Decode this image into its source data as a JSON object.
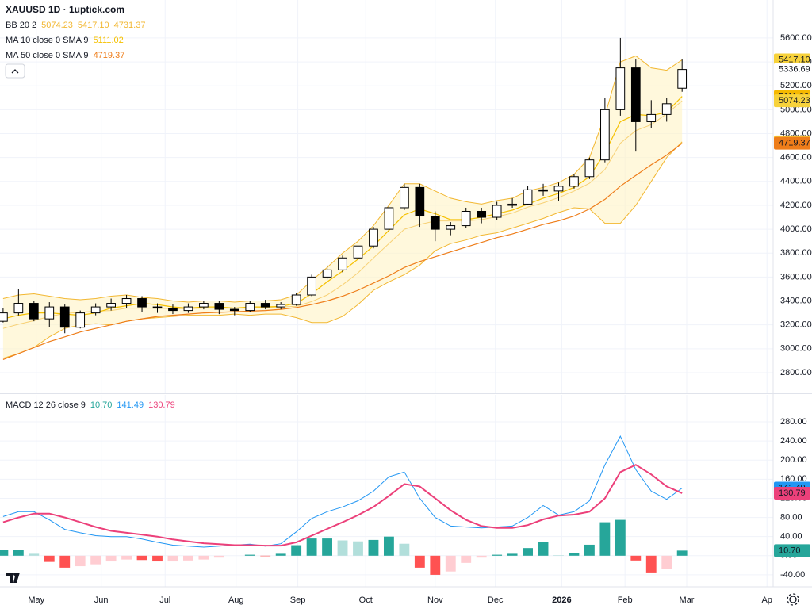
{
  "chart_data": [
    {
      "type": "candlestick",
      "title": "XAUUSD 1D · 1uptick.com",
      "ylim": [
        2634,
        5918
      ],
      "yticks": [
        {
          "value": 2800,
          "label": "2800.00"
        },
        {
          "value": 3000,
          "label": "3000.00"
        },
        {
          "value": 3200,
          "label": "3200.00"
        },
        {
          "value": 3400,
          "label": "3400.00"
        },
        {
          "value": 3600,
          "label": "3600.00"
        },
        {
          "value": 3800,
          "label": "3800.00"
        },
        {
          "value": 4000,
          "label": "4000.00"
        },
        {
          "value": 4200,
          "label": "4200.00"
        },
        {
          "value": 4400,
          "label": "4400.00"
        },
        {
          "value": 4600,
          "label": "4600.00"
        },
        {
          "value": 4800,
          "label": "4800.00"
        },
        {
          "value": 5000,
          "label": "5000.00"
        },
        {
          "value": 5200,
          "label": "5200.00"
        },
        {
          "value": 5400,
          "label": "5400.00"
        },
        {
          "value": 5600,
          "label": "5600.00"
        }
      ],
      "xlim": [
        -0.2,
        49.9
      ],
      "xticks": [
        {
          "value": 2.15,
          "label": "May"
        },
        {
          "value": 6.36,
          "label": "Jun"
        },
        {
          "value": 10.5,
          "label": "Jul"
        },
        {
          "value": 15.1,
          "label": "Aug"
        },
        {
          "value": 19.1,
          "label": "Sep"
        },
        {
          "value": 23.5,
          "label": "Oct"
        },
        {
          "value": 28,
          "label": "Nov"
        },
        {
          "value": 31.9,
          "label": "Dec"
        },
        {
          "value": 36.2,
          "label": "2026"
        },
        {
          "value": 40.3,
          "label": "Feb"
        },
        {
          "value": 44.3,
          "label": "Mar"
        },
        {
          "value": 49.5,
          "label": "Ap"
        }
      ],
      "grid": true,
      "up_color": "#ffffff",
      "down_color": "#000000",
      "open": [
        3230,
        3300,
        3380,
        3250,
        3350,
        3180,
        3300,
        3350,
        3380,
        3420,
        3350,
        3340,
        3320,
        3350,
        3380,
        3330,
        3320,
        3380,
        3350,
        3370,
        3450,
        3600,
        3660,
        3760,
        3860,
        4000,
        4180,
        4350,
        4110,
        4000,
        4030,
        4150,
        4100,
        4200,
        4210,
        4330,
        4320,
        4360,
        4440,
        4580,
        5000,
        5350,
        4900,
        4960,
        5180
      ],
      "high": [
        3340,
        3500,
        3400,
        3390,
        3370,
        3320,
        3380,
        3420,
        3450,
        3440,
        3380,
        3370,
        3380,
        3400,
        3400,
        3350,
        3400,
        3410,
        3390,
        3470,
        3620,
        3700,
        3780,
        3890,
        4020,
        4200,
        4380,
        4380,
        4150,
        4060,
        4180,
        4180,
        4230,
        4260,
        4360,
        4380,
        4390,
        4460,
        4600,
        5100,
        5600,
        5420,
        5080,
        5100,
        5420
      ],
      "low": [
        3220,
        3280,
        3230,
        3180,
        3130,
        3170,
        3280,
        3320,
        3340,
        3310,
        3300,
        3290,
        3300,
        3330,
        3290,
        3280,
        3310,
        3330,
        3330,
        3360,
        3440,
        3580,
        3640,
        3740,
        3840,
        3980,
        4160,
        4020,
        3900,
        3950,
        4010,
        4050,
        4080,
        4180,
        4200,
        4280,
        4240,
        4340,
        4420,
        4560,
        4950,
        4650,
        4850,
        4900,
        5150
      ],
      "close": [
        3300,
        3380,
        3250,
        3350,
        3180,
        3300,
        3350,
        3380,
        3420,
        3350,
        3340,
        3320,
        3350,
        3380,
        3330,
        3320,
        3380,
        3350,
        3370,
        3450,
        3600,
        3660,
        3760,
        3860,
        4000,
        4180,
        4350,
        4110,
        4000,
        4030,
        4150,
        4100,
        4200,
        4210,
        4330,
        4320,
        4360,
        4440,
        4580,
        5000,
        5350,
        4900,
        4960,
        5050,
        5336.69
      ],
      "bb": {
        "name": "BB 20 2",
        "color": "#f2b731",
        "fill": "#fff3c4",
        "basis": [
          3170,
          3205,
          3235,
          3270,
          3295,
          3305,
          3315,
          3320,
          3340,
          3340,
          3340,
          3335,
          3335,
          3340,
          3340,
          3340,
          3340,
          3345,
          3350,
          3355,
          3395,
          3450,
          3535,
          3635,
          3760,
          3880,
          4000,
          4040,
          4070,
          4070,
          4070,
          4080,
          4105,
          4135,
          4185,
          4220,
          4265,
          4320,
          4385,
          4500,
          4720,
          4825,
          4875,
          4965,
          5074.23
        ],
        "upper": [
          3420,
          3450,
          3460,
          3440,
          3420,
          3410,
          3420,
          3440,
          3450,
          3430,
          3420,
          3400,
          3390,
          3400,
          3400,
          3390,
          3400,
          3400,
          3410,
          3450,
          3570,
          3680,
          3800,
          3900,
          4030,
          4200,
          4380,
          4380,
          4320,
          4260,
          4230,
          4210,
          4240,
          4260,
          4320,
          4350,
          4390,
          4460,
          4600,
          4950,
          5400,
          5450,
          5350,
          5330,
          5417.1
        ],
        "lower": [
          2920,
          2960,
          3010,
          3100,
          3170,
          3200,
          3210,
          3200,
          3230,
          3250,
          3260,
          3270,
          3280,
          3280,
          3280,
          3290,
          3280,
          3290,
          3290,
          3260,
          3220,
          3220,
          3270,
          3370,
          3490,
          3560,
          3620,
          3700,
          3820,
          3880,
          3910,
          3950,
          3970,
          4010,
          4050,
          4090,
          4140,
          4180,
          4170,
          4050,
          4050,
          4200,
          4400,
          4600,
          4731.37
        ],
        "upper_label": "5417.10"
      },
      "ma": [
        {
          "name": "MA 10 close 0 SMA 9",
          "color": "#f5c000",
          "values": [
            3250,
            3280,
            3300,
            3300,
            3290,
            3280,
            3300,
            3340,
            3360,
            3380,
            3370,
            3350,
            3340,
            3350,
            3350,
            3340,
            3350,
            3350,
            3355,
            3380,
            3460,
            3560,
            3650,
            3750,
            3860,
            3990,
            4120,
            4170,
            4130,
            4080,
            4080,
            4100,
            4130,
            4160,
            4210,
            4260,
            4300,
            4350,
            4440,
            4640,
            4900,
            4960,
            4950,
            4980,
            5111.02
          ]
        },
        {
          "name": "MA 50 close 0 SMA 9",
          "color": "#ee7d1a",
          "values": [
            2910,
            2960,
            3010,
            3060,
            3100,
            3140,
            3170,
            3200,
            3230,
            3250,
            3270,
            3280,
            3290,
            3300,
            3305,
            3310,
            3315,
            3320,
            3330,
            3345,
            3370,
            3400,
            3440,
            3490,
            3550,
            3610,
            3680,
            3730,
            3770,
            3810,
            3850,
            3890,
            3930,
            3960,
            4000,
            4040,
            4070,
            4110,
            4170,
            4250,
            4360,
            4450,
            4540,
            4620,
            4719.37
          ]
        }
      ]
    },
    {
      "type": "macd",
      "name": "MACD 12 26 close 9",
      "ylim": [
        -65,
        338
      ],
      "yticks": [
        {
          "value": -40,
          "label": "-40.00"
        },
        {
          "value": 0,
          "label": "0.00"
        },
        {
          "value": 40,
          "label": "40.00"
        },
        {
          "value": 80,
          "label": "80.00"
        },
        {
          "value": 120,
          "label": "120.00"
        },
        {
          "value": 160,
          "label": "160.00"
        },
        {
          "value": 200,
          "label": "200.00"
        },
        {
          "value": 240,
          "label": "240.00"
        },
        {
          "value": 280,
          "label": "280.00"
        }
      ],
      "histogram": {
        "colors": [
          "#26a69a",
          "#b2dfdb",
          "#ff5252",
          "#ffcdd2"
        ],
        "values": [
          12,
          12,
          4,
          -13,
          -25,
          -22,
          -18,
          -12,
          -8,
          -9,
          -12,
          -12,
          -10,
          -8,
          -4,
          0,
          2,
          -1,
          4,
          22,
          36,
          36,
          32,
          30,
          33,
          40,
          25,
          -25,
          -40,
          -33,
          -15,
          -4,
          2,
          4,
          16,
          29,
          1,
          6,
          23,
          70,
          75,
          -10,
          -35,
          -27,
          10.7
        ],
        "last_label": "10.70"
      },
      "macd": {
        "color": "#2196f3",
        "values": [
          82,
          92,
          92,
          75,
          55,
          48,
          42,
          40,
          40,
          35,
          28,
          22,
          20,
          18,
          20,
          22,
          24,
          20,
          25,
          50,
          78,
          92,
          102,
          115,
          135,
          165,
          175,
          120,
          80,
          62,
          60,
          58,
          60,
          62,
          80,
          105,
          85,
          92,
          115,
          190,
          250,
          180,
          135,
          118,
          141.49
        ]
      },
      "signal": {
        "color": "#ec407a",
        "values": [
          70,
          80,
          88,
          88,
          80,
          70,
          60,
          52,
          48,
          44,
          40,
          34,
          30,
          26,
          24,
          22,
          22,
          21,
          21,
          28,
          42,
          56,
          70,
          85,
          102,
          125,
          150,
          145,
          120,
          95,
          75,
          62,
          58,
          58,
          64,
          76,
          84,
          86,
          92,
          120,
          175,
          190,
          170,
          145,
          130.79
        ]
      }
    }
  ]
}
